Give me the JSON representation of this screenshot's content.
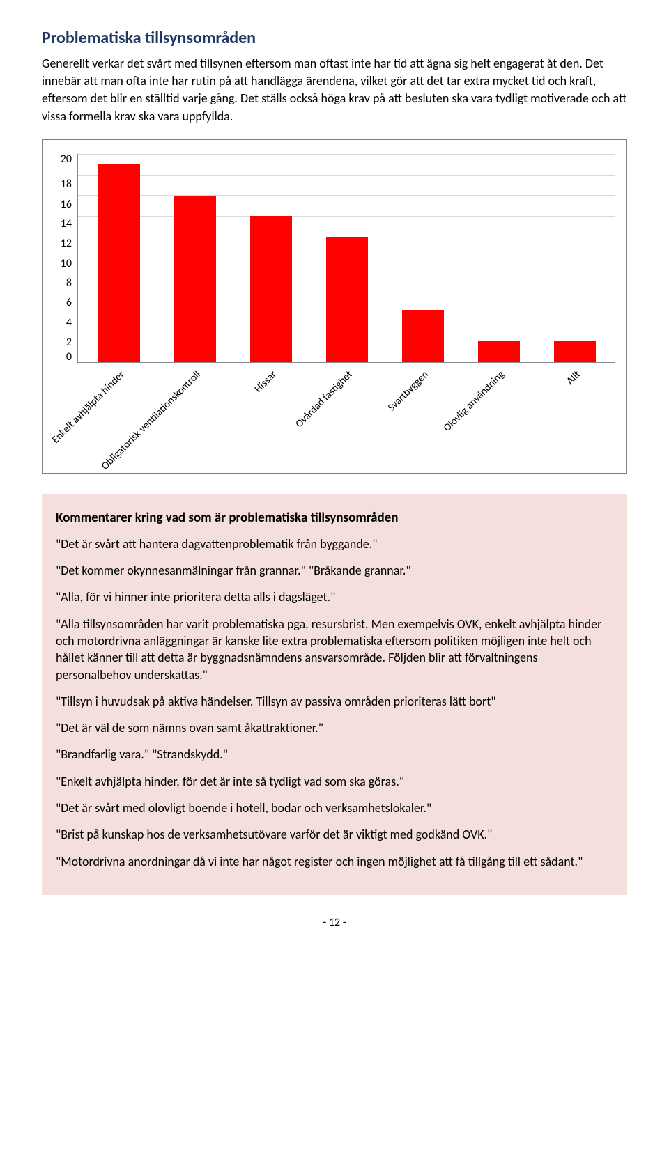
{
  "heading": "Problematiska tillsynsområden",
  "intro": "Generellt verkar det svårt med tillsynen eftersom man oftast inte har tid att ägna sig helt engagerat åt den. Det innebär att man ofta inte har rutin på att handlägga ärendena, vilket gör att det tar extra mycket tid och kraft, eftersom det blir en ställtid varje gång. Det ställs också höga krav på att besluten ska vara tydligt motiverade och att vissa formella krav ska vara uppfyllda.",
  "chart": {
    "type": "bar",
    "ylim": [
      0,
      20
    ],
    "ytick_step": 2,
    "yticks": [
      "20",
      "18",
      "16",
      "14",
      "12",
      "10",
      "8",
      "6",
      "4",
      "2",
      "0"
    ],
    "categories": [
      "Enkelt avhjälpta hinder",
      "Obligatorisk ventilationskontroll",
      "Hissar",
      "Ovårdad fastighet",
      "Svartbyggen",
      "Olovlig användning",
      "Allt"
    ],
    "values": [
      19,
      16,
      14,
      12,
      5,
      2,
      2
    ],
    "bar_color": "#ff0000",
    "grid_color": "#d9d9d9",
    "axis_color": "#888888",
    "background": "#ffffff",
    "label_fontsize": 15,
    "tick_fontsize": 16
  },
  "comments_title": "Kommentarer kring vad som är problematiska tillsynsområden",
  "comments": [
    "\"Det är svårt att hantera dagvattenproblematik från byggande.\"",
    "\"Det kommer okynnesanmälningar från grannar.\" \"Bråkande grannar.\"",
    "\"Alla, för vi hinner inte prioritera detta alls i dagsläget.\"",
    "\"Alla tillsynsområden har varit problematiska pga. resursbrist. Men exempelvis OVK, enkelt avhjälpta hinder och motordrivna anläggningar är kanske lite extra problematiska eftersom politiken möjligen inte helt och hållet känner till att detta är byggnadsnämndens ansvarsområde. Följden blir att förvaltningens personalbehov underskattas.\"",
    "\"Tillsyn i huvudsak på aktiva händelser. Tillsyn av passiva områden prioriteras lätt bort\"",
    "\"Det är väl de som nämns ovan samt åkattraktioner.\"",
    "\"Brandfarlig vara.\" \"Strandskydd.\"",
    "\"Enkelt avhjälpta hinder, för det är inte så tydligt vad som ska göras.\"",
    "\"Det är svårt med olovligt boende i hotell, bodar och verksamhetslokaler.\"",
    "\"Brist på kunskap hos de verksamhetsutövare varför det är viktigt med godkänd OVK.\"",
    "\"Motordrivna anordningar då vi inte har något register och ingen möjlighet att få tillgång till ett sådant.\""
  ],
  "page_number": "- 12 -"
}
